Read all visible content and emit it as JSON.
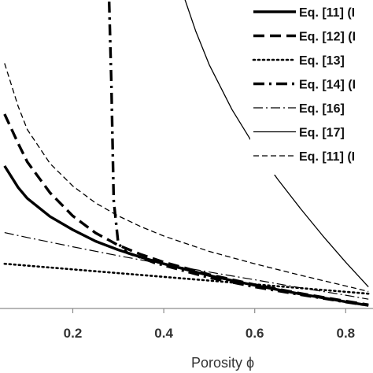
{
  "chart_data": {
    "type": "line",
    "xlabel": "Porosity ϕ",
    "xlim": [
      0.04,
      0.86
    ],
    "ylim": [
      0,
      1
    ],
    "x_ticks": [
      0.2,
      0.4,
      0.6,
      0.8
    ],
    "x_tick_labels": [
      "0.2",
      "0.4",
      "0.6",
      "0.8"
    ],
    "grid": false,
    "legend_position": "top-right",
    "series": [
      {
        "name": "Eq. [11] (I",
        "style": "thick-solid",
        "x": [
          0.05,
          0.08,
          0.1,
          0.15,
          0.2,
          0.25,
          0.3,
          0.35,
          0.4,
          0.5,
          0.6,
          0.7,
          0.8,
          0.85
        ],
        "y": [
          0.462,
          0.392,
          0.357,
          0.298,
          0.255,
          0.218,
          0.19,
          0.166,
          0.145,
          0.107,
          0.075,
          0.047,
          0.022,
          0.01
        ]
      },
      {
        "name": "Eq. [12] (I",
        "style": "thick-dashed",
        "x": [
          0.05,
          0.08,
          0.1,
          0.15,
          0.2,
          0.25,
          0.3,
          0.35,
          0.4,
          0.5,
          0.6,
          0.7,
          0.8,
          0.85
        ],
        "y": [
          0.63,
          0.535,
          0.475,
          0.375,
          0.3,
          0.245,
          0.205,
          0.175,
          0.15,
          0.11,
          0.077,
          0.049,
          0.024,
          0.012
        ]
      },
      {
        "name": "Eq. [13]",
        "style": "dotted",
        "x": [
          0.05,
          0.85
        ],
        "y": [
          0.145,
          0.048
        ]
      },
      {
        "name": "Eq. [14] (I",
        "style": "thick-dashdot",
        "x": [
          0.28,
          0.285,
          0.29,
          0.3,
          0.32,
          0.35,
          0.38,
          0.42,
          0.5,
          0.6,
          0.7,
          0.8,
          0.85
        ],
        "y": [
          0.995,
          0.72,
          0.35,
          0.21,
          0.18,
          0.165,
          0.148,
          0.132,
          0.1,
          0.07,
          0.045,
          0.021,
          0.01
        ]
      },
      {
        "name": "Eq. [16]",
        "style": "thin-dashdot",
        "x": [
          0.05,
          0.1,
          0.2,
          0.3,
          0.4,
          0.5,
          0.6,
          0.7,
          0.8,
          0.85
        ],
        "y": [
          0.246,
          0.23,
          0.2,
          0.171,
          0.144,
          0.118,
          0.093,
          0.067,
          0.043,
          0.03
        ]
      },
      {
        "name": "Eq. [17]",
        "style": "thin-solid",
        "x": [
          0.44,
          0.47,
          0.5,
          0.55,
          0.6,
          0.65,
          0.7,
          0.75,
          0.8,
          0.85
        ],
        "y": [
          1.03,
          0.9,
          0.79,
          0.645,
          0.525,
          0.42,
          0.325,
          0.235,
          0.15,
          0.07
        ]
      },
      {
        "name": "Eq. [11] (I",
        "style": "thin-dashed",
        "x": [
          0.05,
          0.08,
          0.1,
          0.15,
          0.2,
          0.25,
          0.3,
          0.35,
          0.4,
          0.5,
          0.6,
          0.7,
          0.8,
          0.85
        ],
        "y": [
          0.795,
          0.655,
          0.58,
          0.47,
          0.397,
          0.342,
          0.3,
          0.265,
          0.235,
          0.185,
          0.145,
          0.108,
          0.073,
          0.055
        ]
      }
    ]
  }
}
